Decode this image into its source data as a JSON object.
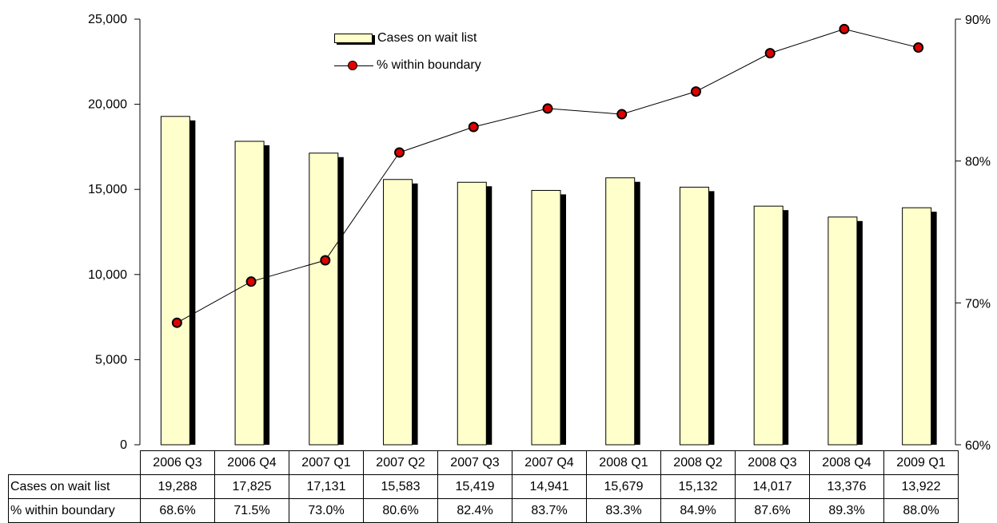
{
  "chart_data": {
    "type": "bar",
    "categories": [
      "2006 Q3",
      "2006 Q4",
      "2007 Q1",
      "2007 Q2",
      "2007 Q3",
      "2007 Q4",
      "2008 Q1",
      "2008 Q2",
      "2008 Q3",
      "2008 Q4",
      "2009 Q1"
    ],
    "series": [
      {
        "name": "Cases on wait list",
        "type": "bar",
        "axis": "left",
        "values": [
          19288,
          17825,
          17131,
          15583,
          15419,
          14941,
          15679,
          15132,
          14017,
          13376,
          13922
        ]
      },
      {
        "name": "% within boundary",
        "type": "line",
        "axis": "right",
        "values": [
          68.6,
          71.5,
          73.0,
          80.6,
          82.4,
          83.7,
          83.3,
          84.9,
          87.6,
          89.3,
          88.0
        ]
      }
    ],
    "left_axis": {
      "ylim": [
        0,
        25000
      ],
      "ticks": [
        "0",
        "5,000",
        "10,000",
        "15,000",
        "20,000",
        "25,000"
      ]
    },
    "right_axis": {
      "ylim": [
        60,
        90
      ],
      "ticks": [
        "60%",
        "70%",
        "80%",
        "90%"
      ]
    },
    "legend_position": "top-center",
    "grid": false,
    "colors": {
      "bar_fill": "#ffffcc",
      "bar_shadow": "#000000",
      "marker_fill": "#e00000",
      "line": "#000000"
    }
  },
  "legend": {
    "bar_label": "Cases on wait list",
    "line_label": "% within boundary"
  },
  "table": {
    "row_labels": [
      "Cases on wait list",
      "% within boundary"
    ],
    "cases_formatted": [
      "19,288",
      "17,825",
      "17,131",
      "15,583",
      "15,419",
      "14,941",
      "15,679",
      "15,132",
      "14,017",
      "13,376",
      "13,922"
    ],
    "pct_formatted": [
      "68.6%",
      "71.5%",
      "73.0%",
      "80.6%",
      "82.4%",
      "83.7%",
      "83.3%",
      "84.9%",
      "87.6%",
      "89.3%",
      "88.0%"
    ]
  }
}
